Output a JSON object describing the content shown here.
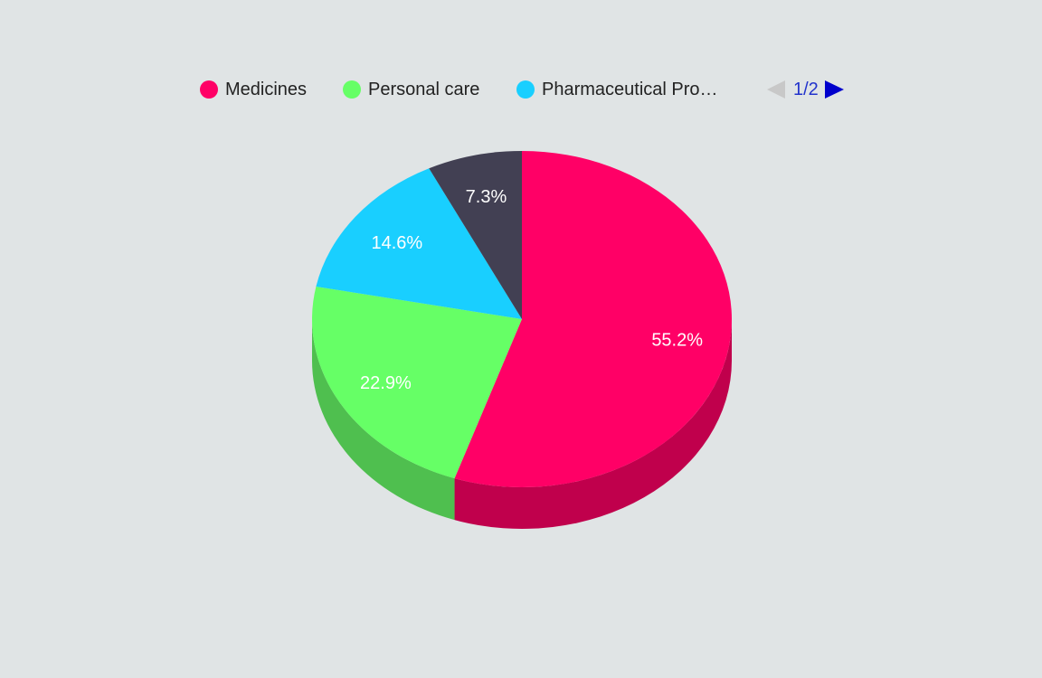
{
  "legend": {
    "items": [
      {
        "label": "Medicines",
        "color": "#ff0066"
      },
      {
        "label": "Personal care",
        "color": "#66ff66"
      },
      {
        "label": "Pharmaceutical Pro…",
        "color": "#19cfff"
      }
    ],
    "page_label": "1/2",
    "prev_icon": "triangle-left-icon",
    "next_icon": "triangle-right-icon",
    "nav_active_color": "#0000cc",
    "nav_inactive_color": "#c8c8c8"
  },
  "chart_data": {
    "type": "pie",
    "style": "3d",
    "legend_position": "top",
    "categories": [
      "Medicines",
      "Personal care",
      "Pharmaceutical Products",
      ""
    ],
    "values": [
      55.2,
      22.9,
      14.6,
      7.3
    ],
    "labels": [
      "55.2%",
      "22.9%",
      "14.6%",
      "7.3%"
    ],
    "colors": [
      "#ff0066",
      "#66ff66",
      "#19cfff",
      "#424053"
    ],
    "side_colors": [
      "#c0004c",
      "#4fbf4f",
      "#139bbf",
      "#313040"
    ]
  }
}
